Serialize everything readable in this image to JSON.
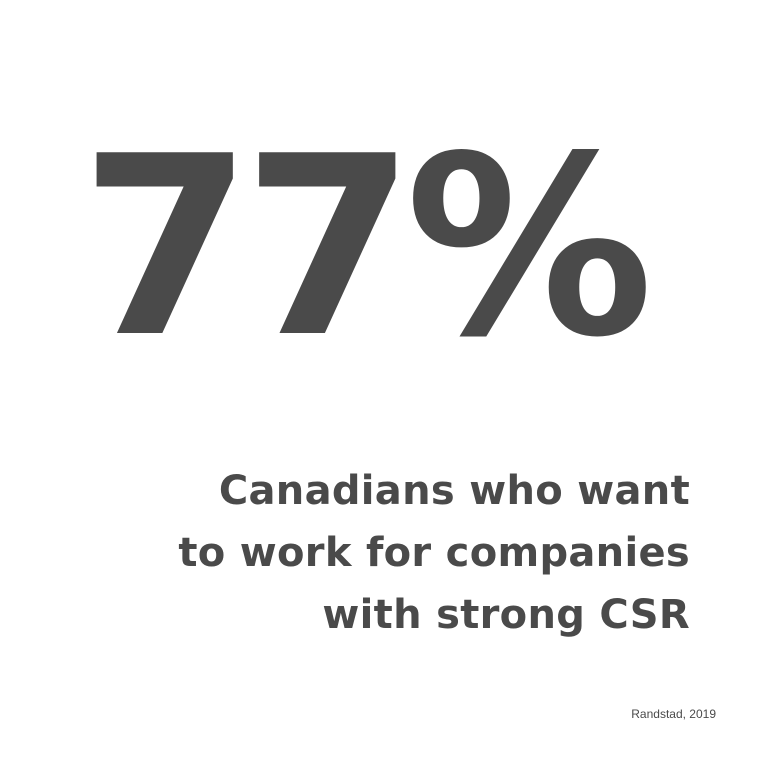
{
  "stat": {
    "value": "77%"
  },
  "caption": {
    "lines": [
      "Canadians who want",
      "to work for companies",
      "with strong CSR"
    ]
  },
  "source": {
    "text": "Randstad, 2019"
  },
  "colors": {
    "background": "#ffffff",
    "text": "#4a4a4a"
  }
}
